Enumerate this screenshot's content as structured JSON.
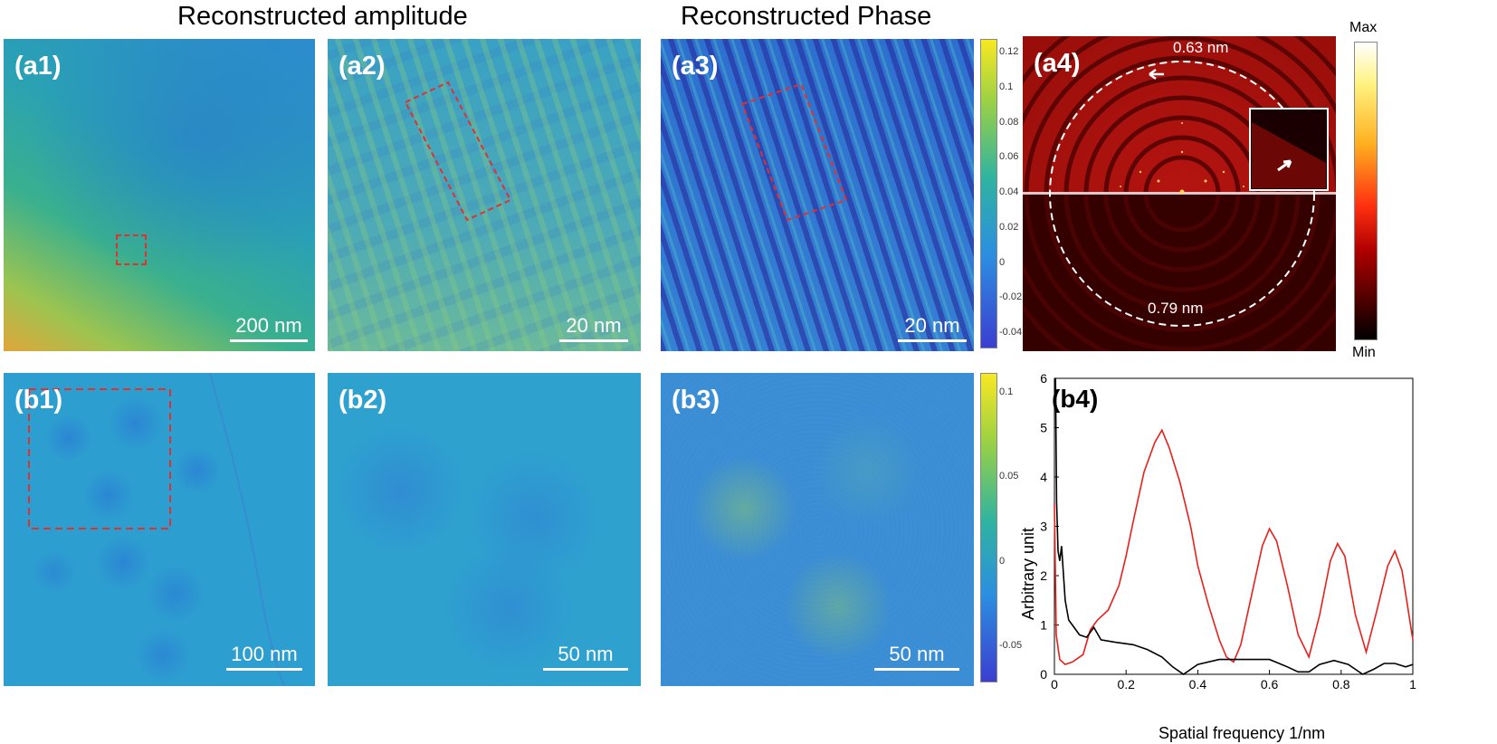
{
  "headers": {
    "amplitude": "Reconstructed amplitude",
    "phase": "Reconstructed Phase"
  },
  "panels": {
    "a1": {
      "label": "(a1)",
      "scale": "200 nm"
    },
    "a2": {
      "label": "(a2)",
      "scale": "20 nm"
    },
    "a3": {
      "label": "(a3)",
      "scale": "20 nm"
    },
    "a4": {
      "label": "(a4)",
      "ring_inner": "0.63 nm",
      "ring_outer": "0.79 nm",
      "cmap_max": "Max",
      "cmap_min": "Min"
    },
    "b1": {
      "label": "(b1)",
      "scale": "100 nm"
    },
    "b2": {
      "label": "(b2)",
      "scale": "50 nm"
    },
    "b3": {
      "label": "(b3)",
      "scale": "50 nm"
    }
  },
  "colorbars": {
    "a3": [
      "0.12",
      "0.1",
      "0.08",
      "0.06",
      "0.04",
      "0.02",
      "0",
      "-0.02",
      "-0.04"
    ],
    "b3": [
      "0.1",
      "0.05",
      "0",
      "-0.05"
    ]
  },
  "colors": {
    "accent_dashed": "#e03030",
    "plot_red": "#e8201c",
    "plot_black": "#000000"
  },
  "chart_data": {
    "type": "line",
    "panel_label": "(b4)",
    "xlabel": "Spatial frequency 1/nm",
    "ylabel": "Arbitrary unit",
    "xlim": [
      0,
      1
    ],
    "ylim": [
      0,
      6
    ],
    "xticks": [
      "0",
      "0.2",
      "0.4",
      "0.6",
      "0.8",
      "1"
    ],
    "yticks": [
      "0",
      "1",
      "2",
      "3",
      "4",
      "5",
      "6"
    ],
    "series": [
      {
        "name": "red",
        "color": "#e8201c",
        "x": [
          0,
          0.005,
          0.015,
          0.03,
          0.05,
          0.08,
          0.1,
          0.12,
          0.15,
          0.18,
          0.2,
          0.22,
          0.25,
          0.28,
          0.3,
          0.32,
          0.35,
          0.38,
          0.4,
          0.43,
          0.46,
          0.48,
          0.5,
          0.52,
          0.55,
          0.58,
          0.6,
          0.62,
          0.65,
          0.68,
          0.71,
          0.74,
          0.77,
          0.79,
          0.81,
          0.84,
          0.87,
          0.9,
          0.93,
          0.95,
          0.97,
          1.0
        ],
        "y": [
          3.45,
          0.8,
          0.3,
          0.2,
          0.25,
          0.4,
          0.9,
          1.1,
          1.3,
          1.8,
          2.4,
          3.1,
          4.1,
          4.7,
          4.95,
          4.6,
          3.9,
          3.0,
          2.2,
          1.4,
          0.7,
          0.35,
          0.25,
          0.6,
          1.6,
          2.6,
          2.95,
          2.7,
          1.8,
          0.8,
          0.35,
          1.2,
          2.3,
          2.65,
          2.4,
          1.2,
          0.45,
          1.3,
          2.2,
          2.5,
          2.1,
          0.7
        ]
      },
      {
        "name": "black",
        "color": "#000000",
        "x": [
          0.003,
          0.006,
          0.01,
          0.015,
          0.02,
          0.03,
          0.04,
          0.05,
          0.07,
          0.09,
          0.11,
          0.13,
          0.17,
          0.22,
          0.26,
          0.3,
          0.33,
          0.36,
          0.4,
          0.46,
          0.5,
          0.55,
          0.6,
          0.65,
          0.68,
          0.71,
          0.74,
          0.78,
          0.82,
          0.86,
          0.89,
          0.92,
          0.95,
          0.98,
          1.0
        ],
        "y": [
          6.0,
          3.5,
          2.5,
          2.3,
          2.6,
          1.5,
          1.1,
          1.0,
          0.8,
          0.75,
          0.95,
          0.7,
          0.65,
          0.6,
          0.5,
          0.35,
          0.15,
          0.0,
          0.2,
          0.3,
          0.3,
          0.3,
          0.3,
          0.15,
          0.05,
          0.05,
          0.2,
          0.28,
          0.2,
          0.0,
          0.1,
          0.22,
          0.22,
          0.15,
          0.2
        ]
      }
    ]
  }
}
